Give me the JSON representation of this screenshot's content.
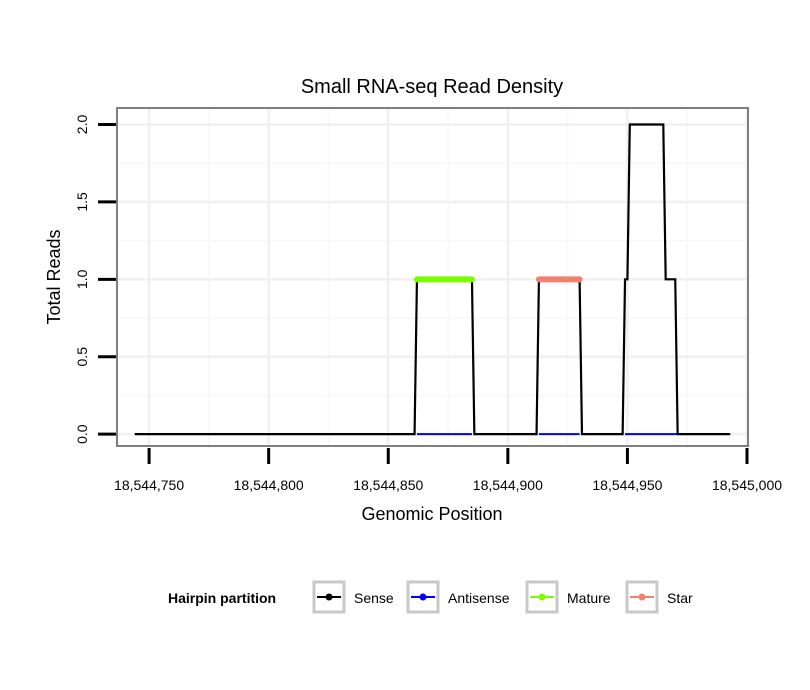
{
  "chart_data": {
    "type": "line",
    "title": "Small RNA-seq Read Density",
    "xlabel": "Genomic Position",
    "ylabel": "Total Reads",
    "xlim": [
      18544737,
      18545000
    ],
    "ylim": [
      -0.07,
      2.1
    ],
    "x_ticks": [
      18544750,
      18544800,
      18544850,
      18544900,
      18544950,
      18545000
    ],
    "x_tick_labels": [
      "18,544,750",
      "18,544,800",
      "18,544,850",
      "18,544,900",
      "18,544,950",
      "18,545,000"
    ],
    "y_ticks": [
      0,
      0.5,
      1,
      1.5,
      2
    ],
    "y_tick_labels": [
      "0.0",
      "0.5",
      "1.0",
      "1.5",
      "2.0"
    ],
    "grid": true,
    "legend_position": "bottom",
    "legend_title": "Hairpin partition",
    "series": [
      {
        "name": "Sense",
        "color": "#000000",
        "x": [
          18544744,
          18544861,
          18544862,
          18544885,
          18544886,
          18544912,
          18544913,
          18544930,
          18544931,
          18544948,
          18544949,
          18544950,
          18544951,
          18544965,
          18544966,
          18544970,
          18544971,
          18544993
        ],
        "y": [
          0,
          0,
          1,
          1,
          0,
          0,
          1,
          1,
          0,
          0,
          1,
          1,
          2,
          2,
          1,
          1,
          0,
          0
        ]
      },
      {
        "name": "Antisense",
        "color": "#0000ff",
        "x": [
          18544862,
          18544885,
          18544913,
          18544930,
          18544949,
          18544971
        ],
        "y": [
          0,
          0,
          0,
          0,
          0,
          0
        ]
      },
      {
        "name": "Mature",
        "color": "#7cfc00",
        "x": [
          18544862,
          18544885
        ],
        "y": [
          1,
          1
        ]
      },
      {
        "name": "Star",
        "color": "#f08070",
        "x": [
          18544913,
          18544930
        ],
        "y": [
          1,
          1
        ]
      }
    ]
  }
}
